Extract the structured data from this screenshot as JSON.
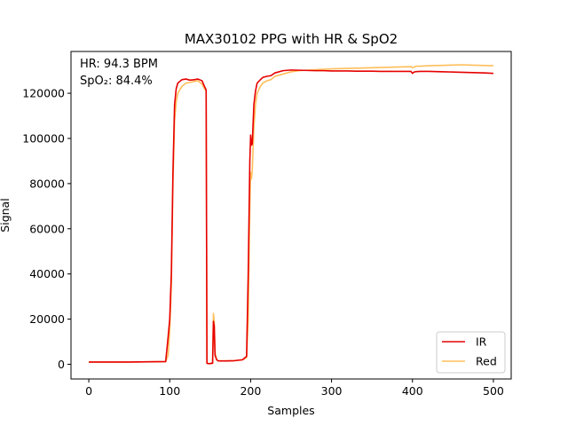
{
  "chart_data": {
    "type": "line",
    "title": "MAX30102 PPG with HR & SpO2",
    "xlabel": "Samples",
    "ylabel": "Signal",
    "xlim": [
      -22,
      522
    ],
    "ylim": [
      -6500,
      138500
    ],
    "xticks": [
      0,
      100,
      200,
      300,
      400,
      500
    ],
    "yticks": [
      0,
      20000,
      40000,
      60000,
      80000,
      100000,
      120000
    ],
    "grid": false,
    "legend_position": "lower-right",
    "annotations": [
      "HR: 94.3 BPM",
      "SpO₂: 84.4%"
    ],
    "series": [
      {
        "name": "Red",
        "color": "#ffbe5a",
        "x": [
          0,
          50,
          95,
          98,
          100,
          102,
          104,
          106,
          108,
          110,
          115,
          120,
          125,
          130,
          135,
          140,
          143,
          145,
          146,
          147,
          150,
          153,
          154,
          155,
          156,
          158,
          160,
          170,
          180,
          190,
          195,
          197,
          199,
          200,
          201,
          202,
          204,
          206,
          208,
          212,
          215,
          220,
          225,
          230,
          240,
          250,
          260,
          270,
          280,
          290,
          300,
          310,
          320,
          330,
          340,
          350,
          360,
          370,
          380,
          390,
          398,
          400,
          402,
          405,
          410,
          420,
          430,
          440,
          450,
          460,
          470,
          480,
          490,
          500
        ],
        "y": [
          1000,
          1000,
          1200,
          4000,
          15000,
          35000,
          80000,
          108000,
          116000,
          120000,
          123000,
          124500,
          124800,
          125200,
          125500,
          124000,
          122000,
          121000,
          500,
          300,
          300,
          500,
          22500,
          19000,
          5000,
          2000,
          1500,
          1500,
          1600,
          2000,
          3000,
          20000,
          70000,
          85000,
          82000,
          86000,
          105000,
          115000,
          120000,
          123000,
          124500,
          125500,
          126000,
          127500,
          128500,
          129500,
          130000,
          130200,
          130400,
          130600,
          130800,
          130900,
          131000,
          131100,
          131200,
          131300,
          131400,
          131500,
          131600,
          131700,
          131800,
          131300,
          131600,
          132000,
          132000,
          132200,
          132300,
          132400,
          132500,
          132600,
          132500,
          132400,
          132300,
          132200
        ]
      },
      {
        "name": "IR",
        "color": "#e60000",
        "x": [
          0,
          50,
          95,
          98,
          100,
          102,
          104,
          106,
          108,
          110,
          115,
          120,
          125,
          130,
          135,
          140,
          143,
          145,
          146,
          147,
          150,
          153,
          154,
          155,
          156,
          158,
          160,
          170,
          180,
          190,
          195,
          197,
          199,
          200,
          201,
          202,
          204,
          206,
          208,
          212,
          215,
          220,
          225,
          230,
          240,
          250,
          260,
          270,
          280,
          290,
          300,
          310,
          320,
          330,
          340,
          350,
          360,
          370,
          380,
          390,
          398,
          400,
          402,
          405,
          410,
          420,
          430,
          440,
          450,
          460,
          470,
          480,
          490,
          500
        ],
        "y": [
          1000,
          1000,
          1200,
          12000,
          20000,
          40000,
          85000,
          115000,
          122000,
          124500,
          126000,
          126300,
          125800,
          126000,
          126300,
          125500,
          123000,
          121500,
          500,
          300,
          300,
          500,
          19000,
          17000,
          4000,
          2000,
          1500,
          1500,
          1600,
          2000,
          3500,
          40000,
          90000,
          101500,
          97000,
          97500,
          115000,
          121000,
          124500,
          126000,
          127000,
          127500,
          127800,
          129000,
          130000,
          130300,
          130200,
          130100,
          130000,
          130000,
          129900,
          129900,
          129900,
          129800,
          129800,
          129800,
          129700,
          129700,
          129700,
          129700,
          129700,
          128800,
          129400,
          129600,
          129700,
          129700,
          129600,
          129500,
          129400,
          129300,
          129200,
          129100,
          129000,
          128800
        ]
      }
    ]
  }
}
